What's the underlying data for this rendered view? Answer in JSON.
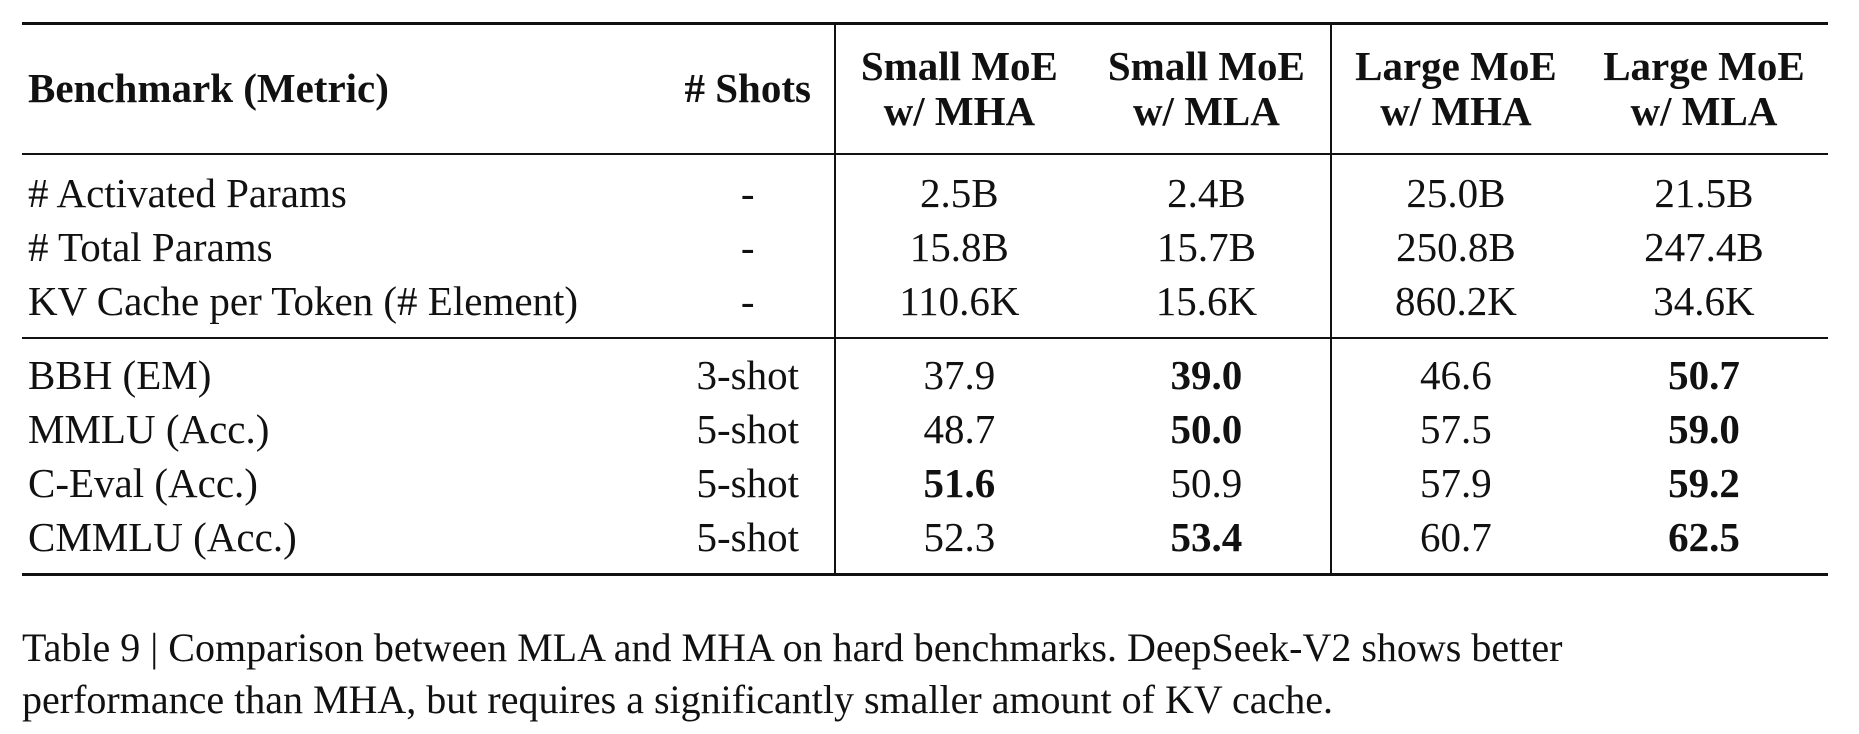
{
  "table": {
    "headers": {
      "benchmark": "Benchmark (Metric)",
      "shots": "# Shots",
      "columns": [
        {
          "line1": "Small MoE",
          "line2": "w/ MHA"
        },
        {
          "line1": "Small MoE",
          "line2": "w/ MLA"
        },
        {
          "line1": "Large MoE",
          "line2": "w/ MHA"
        },
        {
          "line1": "Large MoE",
          "line2": "w/ MLA"
        }
      ]
    },
    "section1": [
      {
        "benchmark": "# Activated Params",
        "shots": "-",
        "values": [
          "2.5B",
          "2.4B",
          "25.0B",
          "21.5B"
        ],
        "bold": [
          false,
          false,
          false,
          false
        ]
      },
      {
        "benchmark": "# Total Params",
        "shots": "-",
        "values": [
          "15.8B",
          "15.7B",
          "250.8B",
          "247.4B"
        ],
        "bold": [
          false,
          false,
          false,
          false
        ]
      },
      {
        "benchmark": "KV Cache per Token (# Element)",
        "shots": "-",
        "values": [
          "110.6K",
          "15.6K",
          "860.2K",
          "34.6K"
        ],
        "bold": [
          false,
          false,
          false,
          false
        ]
      }
    ],
    "section2": [
      {
        "benchmark": "BBH (EM)",
        "shots": "3-shot",
        "values": [
          "37.9",
          "39.0",
          "46.6",
          "50.7"
        ],
        "bold": [
          false,
          true,
          false,
          true
        ]
      },
      {
        "benchmark": "MMLU (Acc.)",
        "shots": "5-shot",
        "values": [
          "48.7",
          "50.0",
          "57.5",
          "59.0"
        ],
        "bold": [
          false,
          true,
          false,
          true
        ]
      },
      {
        "benchmark": "C-Eval (Acc.)",
        "shots": "5-shot",
        "values": [
          "51.6",
          "50.9",
          "57.9",
          "59.2"
        ],
        "bold": [
          true,
          false,
          false,
          true
        ]
      },
      {
        "benchmark": "CMMLU (Acc.)",
        "shots": "5-shot",
        "values": [
          "52.3",
          "53.4",
          "60.7",
          "62.5"
        ],
        "bold": [
          false,
          true,
          false,
          true
        ]
      }
    ]
  },
  "caption": {
    "line1": "Table 9 | Comparison between MLA and MHA on hard benchmarks. DeepSeek-V2 shows better",
    "line2": "performance than MHA, but requires a significantly smaller amount of KV cache."
  }
}
